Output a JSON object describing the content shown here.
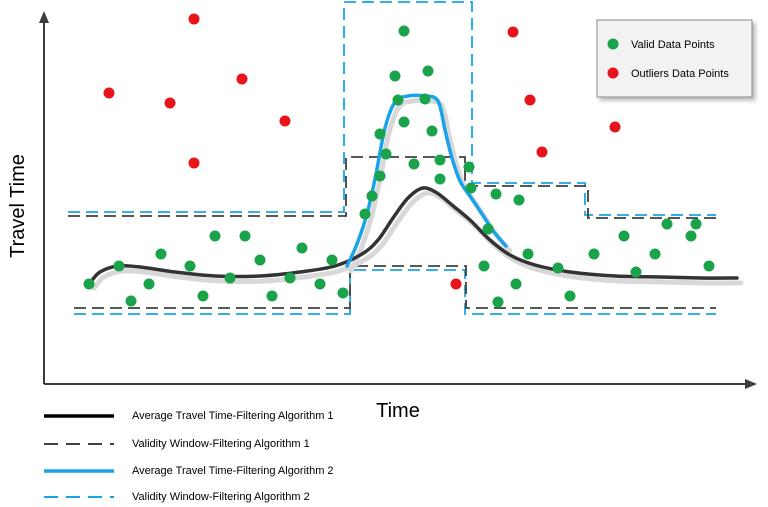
{
  "chart_data": {
    "type": "scatter",
    "xlabel": "Time",
    "ylabel": "Travel Time",
    "grid": false,
    "ticks": false,
    "point_legend": {
      "placement": "top-right",
      "items": [
        {
          "label": "Valid Data Points",
          "color": "#1aa34a"
        },
        {
          "label": "Outliers Data Points",
          "color": "#e8141b"
        }
      ]
    },
    "line_legend": {
      "placement": "bottom",
      "items": [
        {
          "label": "Average Travel Time-Filtering Algorithm 1",
          "color": "#000000",
          "style": "solid"
        },
        {
          "label": "Validity Window-Filtering Algorithm 1",
          "color": "#404040",
          "style": "dashed"
        },
        {
          "label": "Average Travel Time-Filtering Algorithm 2",
          "color": "#1aa3e8",
          "style": "solid"
        },
        {
          "label": "Validity Window-Filtering Algorithm 2",
          "color": "#1aa3e8",
          "style": "dashed"
        }
      ]
    },
    "valid_points": [
      [
        89,
        284
      ],
      [
        119,
        266
      ],
      [
        131,
        301
      ],
      [
        149,
        284
      ],
      [
        161,
        254
      ],
      [
        190,
        266
      ],
      [
        203,
        296
      ],
      [
        215,
        236
      ],
      [
        230,
        278
      ],
      [
        245,
        236
      ],
      [
        260,
        260
      ],
      [
        272,
        296
      ],
      [
        290,
        278
      ],
      [
        302,
        248
      ],
      [
        320,
        284
      ],
      [
        332,
        260
      ],
      [
        343,
        293
      ],
      [
        365,
        214
      ],
      [
        372,
        196
      ],
      [
        380,
        176
      ],
      [
        386,
        154
      ],
      [
        380,
        134
      ],
      [
        395,
        76
      ],
      [
        398,
        100
      ],
      [
        404,
        31
      ],
      [
        404,
        122
      ],
      [
        414,
        164
      ],
      [
        425,
        99
      ],
      [
        428,
        71
      ],
      [
        432,
        131
      ],
      [
        440,
        160
      ],
      [
        440,
        179
      ],
      [
        469,
        167
      ],
      [
        471,
        188
      ],
      [
        488,
        229
      ],
      [
        484,
        266
      ],
      [
        496,
        194
      ],
      [
        498,
        302
      ],
      [
        516,
        284
      ],
      [
        519,
        200
      ],
      [
        528,
        254
      ],
      [
        558,
        268
      ],
      [
        570,
        296
      ],
      [
        594,
        254
      ],
      [
        624,
        236
      ],
      [
        636,
        272
      ],
      [
        655,
        254
      ],
      [
        667,
        224
      ],
      [
        691,
        236
      ],
      [
        696,
        224
      ],
      [
        709,
        266
      ]
    ],
    "outlier_points": [
      [
        194,
        19
      ],
      [
        109,
        93
      ],
      [
        170,
        103
      ],
      [
        242,
        79
      ],
      [
        285,
        121
      ],
      [
        194,
        163
      ],
      [
        513,
        32
      ],
      [
        530,
        100
      ],
      [
        542,
        152
      ],
      [
        615,
        127
      ],
      [
        456,
        284
      ]
    ],
    "avg_travel_time_alg1": [
      [
        90,
        283
      ],
      [
        100,
        272
      ],
      [
        118,
        266
      ],
      [
        140,
        267
      ],
      [
        175,
        272
      ],
      [
        215,
        276
      ],
      [
        260,
        276
      ],
      [
        300,
        272
      ],
      [
        335,
        266
      ],
      [
        362,
        254
      ],
      [
        378,
        240
      ],
      [
        393,
        218
      ],
      [
        408,
        198
      ],
      [
        423,
        188
      ],
      [
        437,
        193
      ],
      [
        452,
        205
      ],
      [
        470,
        220
      ],
      [
        490,
        240
      ],
      [
        510,
        255
      ],
      [
        535,
        265
      ],
      [
        570,
        272
      ],
      [
        615,
        276
      ],
      [
        660,
        277
      ],
      [
        700,
        278
      ],
      [
        737,
        278
      ]
    ],
    "avg_travel_time_alg2": [
      [
        347,
        266
      ],
      [
        357,
        244
      ],
      [
        367,
        214
      ],
      [
        376,
        174
      ],
      [
        385,
        128
      ],
      [
        395,
        102
      ],
      [
        408,
        96
      ],
      [
        425,
        96
      ],
      [
        438,
        101
      ],
      [
        445,
        130
      ],
      [
        452,
        158
      ],
      [
        460,
        181
      ],
      [
        470,
        196
      ],
      [
        482,
        214
      ],
      [
        494,
        232
      ],
      [
        506,
        246
      ]
    ],
    "validity_window_alg1": {
      "upper": [
        [
          68,
          216
        ],
        [
          346,
          216
        ],
        [
          346,
          157
        ],
        [
          465,
          157
        ],
        [
          465,
          186
        ],
        [
          588,
          186
        ],
        [
          588,
          218
        ],
        [
          716,
          218
        ]
      ],
      "lower": [
        [
          74,
          308
        ],
        [
          350,
          308
        ],
        [
          350,
          266
        ],
        [
          466,
          266
        ],
        [
          466,
          308
        ],
        [
          716,
          308
        ]
      ]
    },
    "validity_window_alg2": {
      "upper": [
        [
          68,
          212
        ],
        [
          344,
          212
        ],
        [
          344,
          2
        ],
        [
          472,
          2
        ],
        [
          472,
          183
        ],
        [
          585,
          183
        ],
        [
          585,
          215
        ],
        [
          716,
          215
        ]
      ],
      "lower": [
        [
          74,
          314
        ],
        [
          350,
          314
        ],
        [
          350,
          270
        ],
        [
          465,
          270
        ],
        [
          465,
          314
        ],
        [
          716,
          314
        ]
      ]
    }
  }
}
